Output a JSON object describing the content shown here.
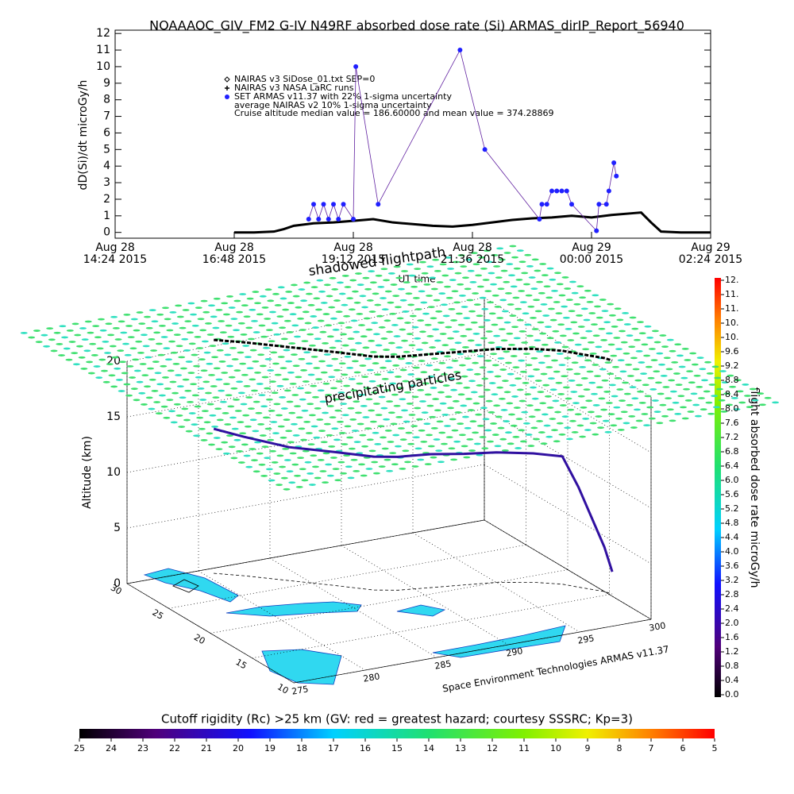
{
  "chart_data": [
    {
      "type": "line",
      "title": "NOAAAOC_GIV_FM2 G-IV   N49RF  absorbed dose rate (Si) ARMAS_dirIP_Report_56940",
      "ylabel": "dD(Si)/dt microGy/h",
      "xlabel": "UT time",
      "xlim": [
        14.4,
        26.4
      ],
      "xticks": [
        {
          "value": 14.4,
          "label": "Aug 28\n14:24 2015"
        },
        {
          "value": 16.8,
          "label": "Aug 28\n16:48 2015"
        },
        {
          "value": 19.2,
          "label": "Aug 28\n19:12 2015"
        },
        {
          "value": 21.6,
          "label": "Aug 28\n21:36 2015"
        },
        {
          "value": 24.0,
          "label": "Aug 29\n00:00 2015"
        },
        {
          "value": 26.4,
          "label": "Aug 29\n02:24 2015"
        }
      ],
      "ylim": [
        -0.35,
        12.2
      ],
      "yticks": [
        0,
        1,
        2,
        3,
        4,
        5,
        6,
        7,
        8,
        9,
        10,
        11,
        12
      ],
      "series": [
        {
          "name": "NAIRAS v3 SiDose_01.txt SEP=0",
          "color": "#000000",
          "marker": "diamond",
          "x": [
            16.8,
            17.2,
            17.6,
            17.8,
            18.0,
            18.4,
            18.8,
            19.2,
            19.6,
            20.0,
            20.4,
            20.8,
            21.2,
            21.6,
            22.0,
            22.4,
            22.8,
            23.2,
            23.6,
            24.0,
            24.4,
            24.8,
            25.0,
            25.2,
            25.4,
            25.8,
            26.4
          ],
          "values": [
            0,
            0,
            0.05,
            0.2,
            0.4,
            0.55,
            0.6,
            0.7,
            0.8,
            0.6,
            0.5,
            0.4,
            0.35,
            0.45,
            0.6,
            0.75,
            0.85,
            0.9,
            1.0,
            0.9,
            1.05,
            1.15,
            1.2,
            0.6,
            0.05,
            0,
            0
          ]
        },
        {
          "name": "NAIRAS v3 NASA LaRC runs",
          "color": "#000000",
          "marker": "plus",
          "x": [],
          "values": []
        },
        {
          "name": "SET ARMAS v11.37 with 22% 1-sigma uncertainty",
          "color": "#2020ff",
          "marker": "dot",
          "x": [
            18.3,
            18.4,
            18.5,
            18.6,
            18.7,
            18.8,
            18.9,
            19.0,
            19.2,
            19.25,
            19.7,
            21.35,
            21.85,
            22.95,
            23.0,
            23.1,
            23.2,
            23.3,
            23.4,
            23.5,
            23.6,
            24.1,
            24.15,
            24.3,
            24.35,
            24.45,
            24.5
          ],
          "values": [
            0.8,
            1.7,
            0.8,
            1.7,
            0.8,
            1.7,
            0.8,
            1.7,
            0.8,
            10.0,
            1.7,
            11.0,
            5.0,
            0.8,
            1.7,
            1.7,
            2.5,
            2.5,
            2.5,
            2.5,
            1.7,
            0.1,
            1.7,
            1.7,
            2.5,
            4.2,
            3.4
          ]
        }
      ],
      "annotations": [
        "average NAIRAS v2 10% 1-sigma uncertainty",
        "Cruise altitude median value = 186.60000 and mean value = 374.28869"
      ]
    },
    {
      "type": "scatter3d",
      "zlabel": "Altitude (km)",
      "zlim": [
        0,
        20
      ],
      "zticks": [
        0,
        5,
        10,
        15,
        20
      ],
      "latlim": [
        10,
        30
      ],
      "latticks": [
        10,
        15,
        20,
        25,
        30
      ],
      "lonlim": [
        275,
        300
      ],
      "lonticks": [
        275,
        280,
        285,
        290,
        295,
        300
      ],
      "annotations": [
        "shadowed flightpath",
        "precipitating particles",
        "Space Environment Technologies ARMAS v11.37"
      ],
      "series": [
        {
          "color": "#3010a0",
          "lon": [
            280.6,
            282,
            284,
            286,
            287.7,
            289,
            291,
            293,
            295,
            297,
            298.4,
            299,
            299.5,
            300,
            300.2
          ],
          "lat": [
            29.2,
            28,
            26,
            24,
            22.2,
            21.5,
            21,
            20.5,
            20,
            19,
            17.9,
            17,
            16.3,
            15.6,
            15
          ],
          "alt": [
            13,
            12.5,
            12,
            12,
            12,
            12,
            12,
            11.8,
            11.7,
            11.6,
            11.5,
            9,
            6.5,
            4,
            2
          ]
        }
      ],
      "shadow_alt": 21
    },
    {
      "type": "colorbar",
      "orientation": "vertical",
      "label": "flight absorbed dose rate microGy/h",
      "clim": [
        0,
        11.6
      ],
      "ticks": [
        {
          "value": 0.0,
          "label": "0.0"
        },
        0.4,
        0.8,
        1.2,
        1.6,
        {
          "value": 2.0,
          "label": "2.0"
        },
        2.4,
        2.8,
        3.2,
        3.6,
        {
          "value": 4.0,
          "label": "4.0"
        },
        4.4,
        4.8,
        5.2,
        5.6,
        {
          "value": 6.0,
          "label": "6.0"
        },
        6.4,
        6.8,
        7.2,
        7.6,
        {
          "value": 8.0,
          "label": "8.0"
        },
        8.4,
        8.8,
        9.2,
        9.6,
        {
          "value": 10.0,
          "label": "10."
        },
        {
          "value": 10.4,
          "label": "10."
        },
        {
          "value": 10.8,
          "label": "11."
        },
        {
          "value": 11.2,
          "label": "11."
        },
        {
          "value": 11.6,
          "label": "12."
        }
      ]
    },
    {
      "type": "colorbar",
      "orientation": "horizontal",
      "label": "Cutoff rigidity (Rc) >25 km (GV: red = greatest hazard; courtesy SSSRC; Kp=3)",
      "clim": [
        25,
        5
      ],
      "ticks": [
        25,
        24,
        23,
        22,
        21,
        20,
        19,
        18,
        17,
        16,
        15,
        14,
        13,
        12,
        11,
        10,
        9,
        8,
        7,
        6,
        5
      ]
    }
  ]
}
